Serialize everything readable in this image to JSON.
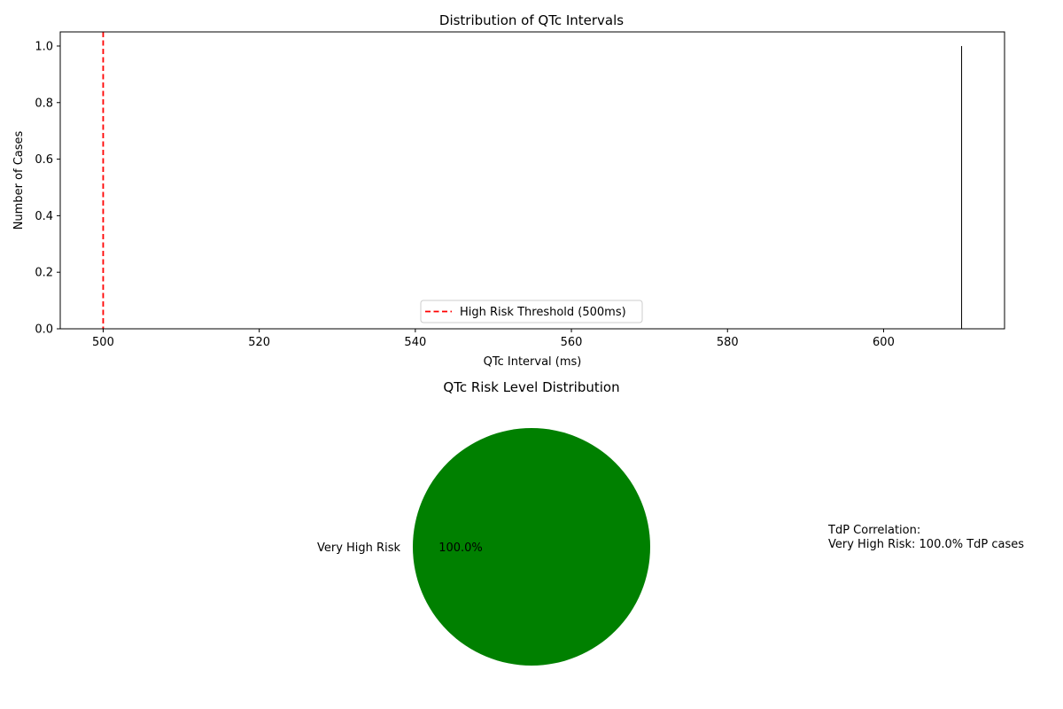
{
  "chart_data": [
    {
      "type": "bar",
      "title": "Distribution of QTc Intervals",
      "xlabel": "QTc Interval (ms)",
      "ylabel": "Number of Cases",
      "xlim": [
        494.5,
        615.5
      ],
      "ylim": [
        0.0,
        1.05
      ],
      "x_ticks": [
        "500",
        "520",
        "540",
        "560",
        "580",
        "600"
      ],
      "y_ticks": [
        "0.0",
        "0.2",
        "0.4",
        "0.6",
        "0.8",
        "1.0"
      ],
      "bins": [
        {
          "x": 610,
          "value": 1
        }
      ],
      "threshold": {
        "x": 500,
        "label": "High Risk Threshold (500ms)",
        "color": "#ff0000",
        "style": "dashed"
      },
      "legend": {
        "placement": "lower center",
        "entries": [
          "High Risk Threshold (500ms)"
        ]
      },
      "grid": false
    },
    {
      "type": "pie",
      "title": "QTc Risk Level Distribution",
      "slices": [
        {
          "label": "Very High Risk",
          "value": 100.0,
          "pct_label": "100.0%",
          "color": "#008000"
        }
      ],
      "annotation": [
        "TdP Correlation:",
        "Very High Risk: 100.0% TdP cases"
      ]
    }
  ]
}
